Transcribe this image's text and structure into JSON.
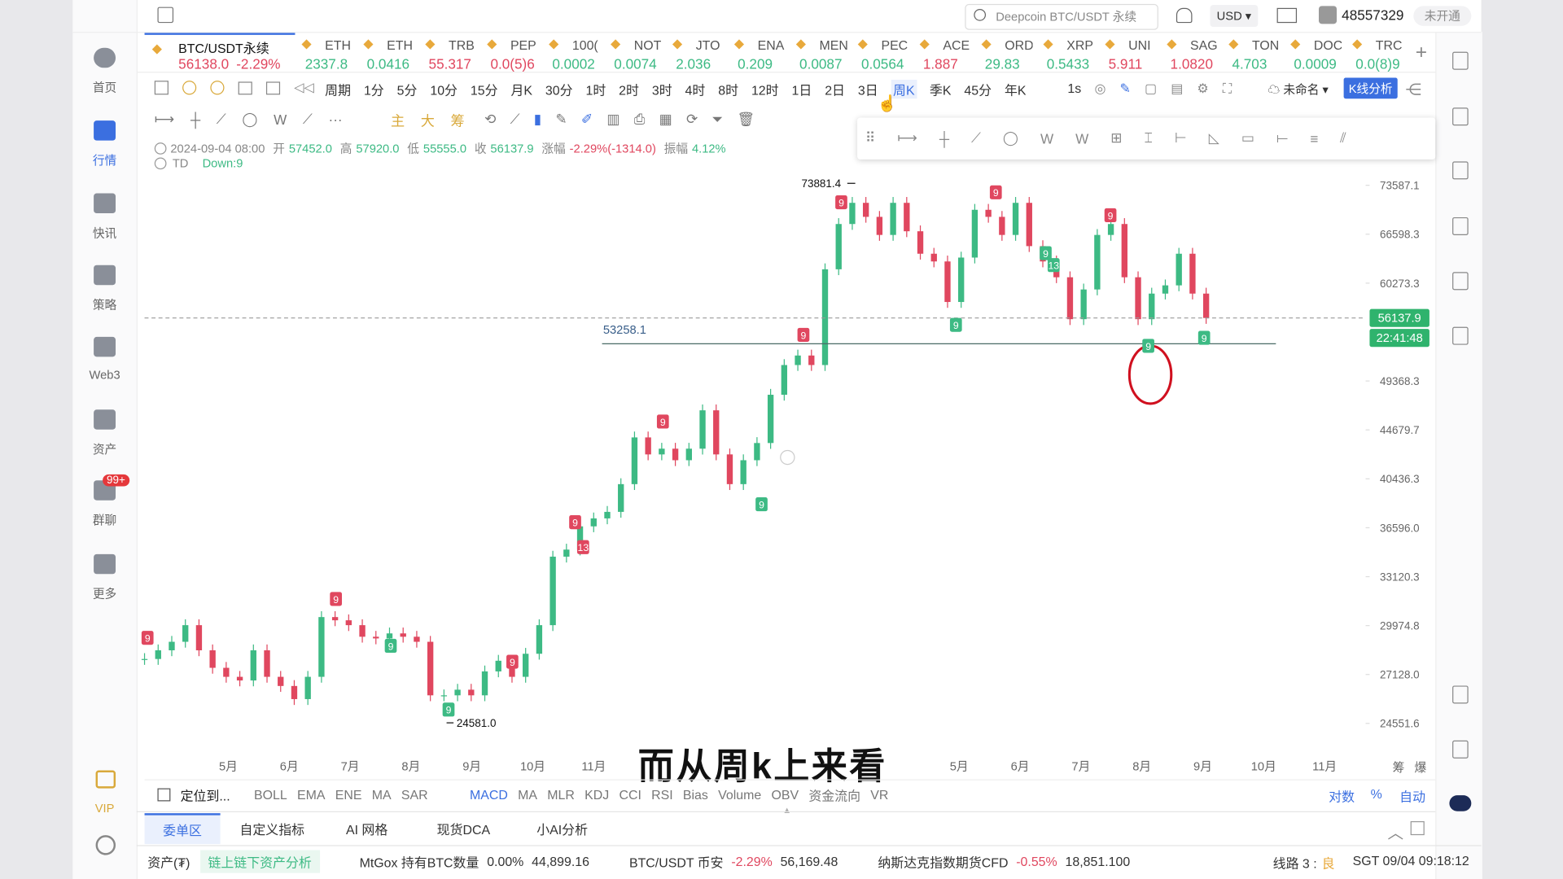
{
  "top_bar": {
    "search": "Deepcoin BTC/USDT 永续",
    "currency": "USD",
    "user_id": "48557329",
    "status": "未开通"
  },
  "nav": [
    "首页",
    "行情",
    "快讯",
    "策略",
    "Web3",
    "资产",
    "群聊",
    "更多",
    "VIP"
  ],
  "nav_badge": "99+",
  "tickers": [
    {
      "name": "BTC/USDT永续",
      "price": "56138.0",
      "change": "-2.29%",
      "up": false
    },
    {
      "name": "ETH",
      "price": "2337.8",
      "up": true
    },
    {
      "name": "ETH",
      "price": "0.0416",
      "up": true
    },
    {
      "name": "TRB",
      "price": "55.317",
      "up": false
    },
    {
      "name": "PEP",
      "price": "0.0(5)6",
      "up": false
    },
    {
      "name": "100(",
      "price": "0.0002",
      "up": true
    },
    {
      "name": "NOT",
      "price": "0.0074",
      "up": true
    },
    {
      "name": "JTO",
      "price": "2.036",
      "up": true
    },
    {
      "name": "ENA",
      "price": "0.209",
      "up": true
    },
    {
      "name": "MEN",
      "price": "0.0087",
      "up": true
    },
    {
      "name": "PEC",
      "price": "0.0564",
      "up": true
    },
    {
      "name": "ACE",
      "price": "1.887",
      "up": false
    },
    {
      "name": "ORD",
      "price": "29.83",
      "up": true
    },
    {
      "name": "XRP",
      "price": "0.5433",
      "up": true
    },
    {
      "name": "UNI",
      "price": "5.911",
      "up": false
    },
    {
      "name": "SAG",
      "price": "1.0820",
      "up": false
    },
    {
      "name": "TON",
      "price": "4.703",
      "up": true
    },
    {
      "name": "DOC",
      "price": "0.0009",
      "up": true
    },
    {
      "name": "TRC",
      "price": "0.0(8)9",
      "up": true
    }
  ],
  "intervals": [
    {
      "label": "周期"
    },
    {
      "label": "1分"
    },
    {
      "label": "5分"
    },
    {
      "label": "10分"
    },
    {
      "label": "15分"
    },
    {
      "label": "月K"
    },
    {
      "label": "30分"
    },
    {
      "label": "1时"
    },
    {
      "label": "2时"
    },
    {
      "label": "3时"
    },
    {
      "label": "4时"
    },
    {
      "label": "8时"
    },
    {
      "label": "12时"
    },
    {
      "label": "1日"
    },
    {
      "label": "2日"
    },
    {
      "label": "3日"
    },
    {
      "label": "周K",
      "active": true
    },
    {
      "label": "季K"
    },
    {
      "label": "45分"
    },
    {
      "label": "年K"
    }
  ],
  "toolbar": {
    "seconds": "1s",
    "layout_name": "未命名",
    "analysis": "K线分析",
    "main_labels": [
      "主",
      "大",
      "筹"
    ]
  },
  "info": {
    "datetime": "2024-09-04 08:00",
    "fields": [
      {
        "label": "开",
        "value": "57452.0"
      },
      {
        "label": "高",
        "value": "57920.0"
      },
      {
        "label": "低",
        "value": "55555.0"
      },
      {
        "label": "收",
        "value": "56137.9"
      },
      {
        "label": "涨幅",
        "value": "-2.29%(-1314.0)"
      },
      {
        "label": "振幅",
        "value": "4.12%"
      }
    ],
    "td_label": "TD",
    "td_value": "Down:9"
  },
  "chart_data": {
    "type": "candlestick",
    "closes": [
      28000,
      28500,
      29000,
      30000,
      28500,
      27500,
      27000,
      26800,
      28500,
      27000,
      26500,
      25800,
      27000,
      30500,
      30300,
      30000,
      29300,
      29200,
      29500,
      29300,
      29000,
      26000,
      26000,
      26300,
      26000,
      27300,
      27900,
      27000,
      28300,
      30000,
      34500,
      35000,
      36700,
      37300,
      37800,
      40000,
      44000,
      42500,
      43000,
      42000,
      43000,
      46500,
      42500,
      40000,
      42000,
      43500,
      48000,
      51000,
      52000,
      51000,
      62000,
      68000,
      71000,
      69000,
      66500,
      71000,
      67000,
      64000,
      63000,
      58000,
      63500,
      70000,
      69000,
      66500,
      71000,
      65000,
      63000,
      61000,
      56000,
      59500,
      66500,
      68000,
      61000,
      56000,
      59000,
      60000,
      64000,
      59000,
      56137.9
    ],
    "ylim": [
      23000,
      75700
    ],
    "log": true,
    "yticks": [
      73587.1,
      66598.3,
      60273.3,
      49368.3,
      44679.7,
      40436.3,
      {
        "value": 36596,
        "label": "36596.0"
      },
      33120.3,
      29974.8,
      {
        "value": 27128,
        "label": "27128.0"
      },
      24551.6
    ],
    "x_labels": [
      "5月",
      "6月",
      "7月",
      "8月",
      "9月",
      "10月",
      "11月",
      "5月",
      "6月",
      "7月",
      "8月",
      "9月",
      "10月",
      "11月"
    ],
    "last_price": 56137.9,
    "countdown": "22:41:48",
    "support": 53258.1,
    "high_label": 73881.4,
    "low_label": {
      "value": 24581,
      "label": "24581.0"
    },
    "td_sell": [
      "9",
      "9",
      "9",
      "9",
      "13",
      "9",
      "9",
      "9",
      "9",
      "9"
    ],
    "td_buy": [
      "9",
      "9",
      "9",
      "9",
      "9",
      "13",
      "9",
      "9"
    ],
    "up_color": "#3dba84",
    "down_color": "#e0475f"
  },
  "caption": "而从周k上来看",
  "indicators": {
    "locate": "定位到...",
    "main": [
      "BOLL",
      "EMA",
      "ENE",
      "MA",
      "SAR"
    ],
    "sub": [
      {
        "label": "MACD",
        "active": true
      },
      {
        "label": "MA"
      },
      {
        "label": "MLR"
      },
      {
        "label": "KDJ"
      },
      {
        "label": "CCI"
      },
      {
        "label": "RSI"
      },
      {
        "label": "Bias"
      },
      {
        "label": "Volume"
      },
      {
        "label": "OBV"
      },
      {
        "label": "资金流向"
      },
      {
        "label": "VR"
      }
    ],
    "right": [
      "对数",
      "%",
      "自动"
    ],
    "corner": [
      "筹",
      "爆"
    ]
  },
  "tabs": [
    {
      "label": "委单区",
      "active": true
    },
    {
      "label": "自定义指标"
    },
    {
      "label": "AI 网格"
    },
    {
      "label": "现货DCA"
    },
    {
      "label": "小AI分析"
    }
  ],
  "status": {
    "asset": "资产(₮)",
    "analysis": "链上链下资产分析",
    "items": [
      {
        "name": "MtGox 持有BTC数量",
        "change": "0.00%",
        "value": "44,899.16"
      },
      {
        "name": "BTC/USDT 币安",
        "change": "-2.29%",
        "value": "56,169.48"
      },
      {
        "name": "纳斯达克指数期货CFD",
        "change": "-0.55%",
        "value": "18,851.100"
      }
    ],
    "line": "线路 3 : ",
    "line_quality": "良",
    "time": "SGT 09/04 09:18:12"
  }
}
